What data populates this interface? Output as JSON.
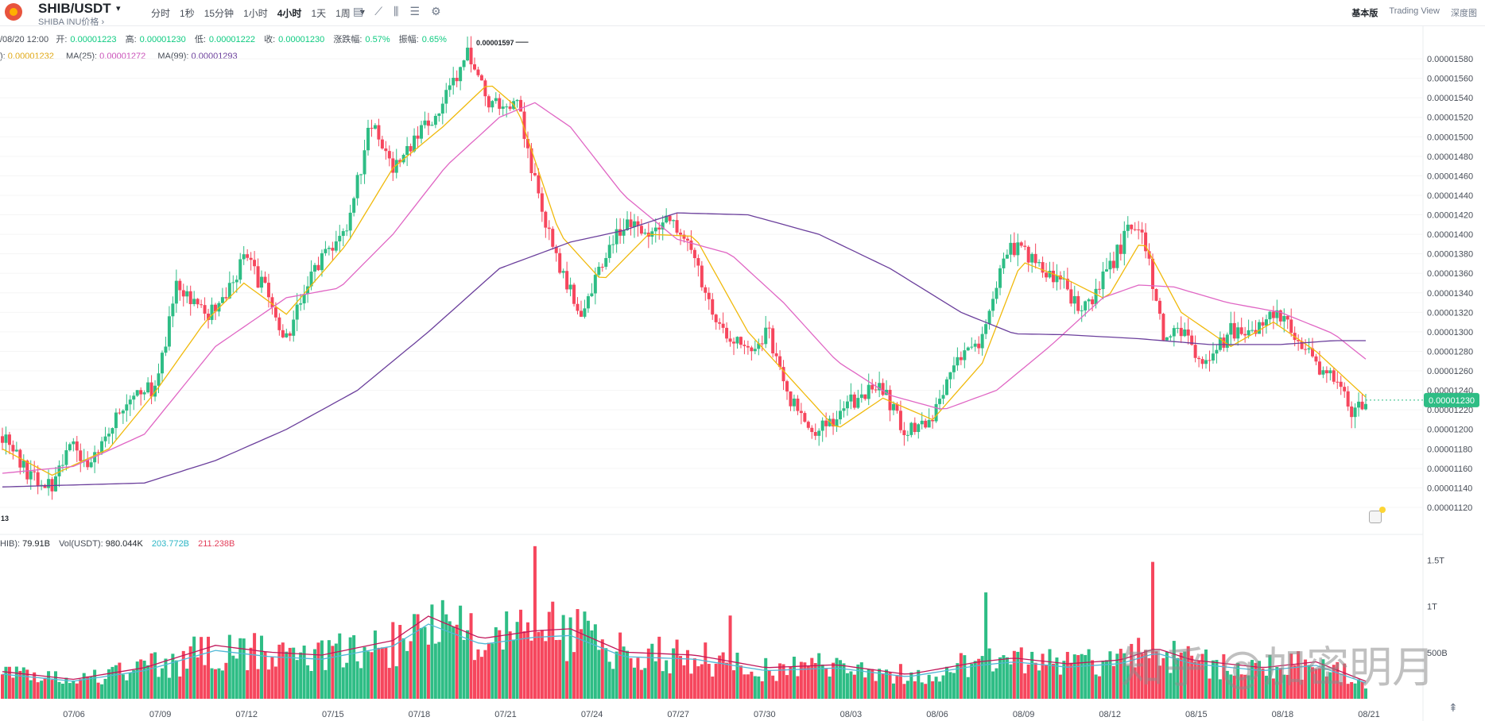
{
  "header": {
    "pair": "SHIB/USDT",
    "caret": "▾",
    "subtitle": "SHIBA INU价格 ›",
    "intervals": [
      "分时",
      "1秒",
      "15分钟",
      "1小时",
      "4小时",
      "1天",
      "1周",
      "▾"
    ],
    "active_interval": "4小时",
    "tools": [
      "▤",
      "⟋",
      "⫼",
      "☰",
      "⚙"
    ],
    "views": [
      "基本版",
      "Trading View",
      "深度图"
    ]
  },
  "info": {
    "date": "/08/20 12:00",
    "open_label": "开:",
    "open": "0.00001223",
    "high_label": "高:",
    "high": "0.00001230",
    "low_label": "低:",
    "low": "0.00001222",
    "close_label": "收:",
    "close": "0.00001230",
    "chg_label": "涨跌幅:",
    "chg": "0.57%",
    "amp_label": "振幅:",
    "amp": "0.65%",
    "ma7_label": "):",
    "ma7": "0.00001232",
    "ma25_label": "MA(25):",
    "ma25": "0.00001272",
    "ma99_label": "MA(99):",
    "ma99": "0.00001293",
    "vol_label": "HIB):",
    "vol": "79.91B",
    "volusdt_label": "Vol(USDT):",
    "volusdt": "980.044K",
    "volma1": "203.772B",
    "volma2": "211.238B"
  },
  "watermark": "知乎 @加密明月",
  "colors": {
    "up": "#2ebd85",
    "down": "#f6465d",
    "ma7": "#f0b90b",
    "ma25": "#e066c4",
    "ma99": "#6b3f9c",
    "vma1": "#4fb8d6",
    "vma2": "#c2185b",
    "last": "#2ebd85"
  },
  "chart_data": {
    "type": "candlestick",
    "interval": "4h",
    "price_axis": {
      "min": 1.11e-05,
      "max": 1.6e-05,
      "ticks": [
        "0.00001580",
        "0.00001560",
        "0.00001540",
        "0.00001520",
        "0.00001500",
        "0.00001480",
        "0.00001460",
        "0.00001440",
        "0.00001420",
        "0.00001400",
        "0.00001380",
        "0.00001360",
        "0.00001340",
        "0.00001320",
        "0.00001300",
        "0.00001280",
        "0.00001260",
        "0.00001240",
        "0.00001220",
        "0.00001200",
        "0.00001180",
        "0.00001160",
        "0.00001140",
        "0.00001120"
      ],
      "last_price": "0.00001230",
      "max_marker": "0.00001597",
      "min_marker": "13"
    },
    "volume_axis": {
      "ticks": [
        "1.5T",
        "1T",
        "500B"
      ],
      "max": 1.7
    },
    "date_labels": [
      "07/06",
      "07/09",
      "07/12",
      "07/15",
      "07/18",
      "07/21",
      "07/24",
      "07/27",
      "07/30",
      "08/03",
      "08/06",
      "08/09",
      "08/12",
      "08/15",
      "08/18",
      "08/21"
    ],
    "close_path": [
      [
        0,
        1.193
      ],
      [
        8,
        1.15
      ],
      [
        14,
        1.143
      ],
      [
        19,
        1.191
      ],
      [
        24,
        1.158
      ],
      [
        30,
        1.195
      ],
      [
        37,
        1.242
      ],
      [
        43,
        1.24
      ],
      [
        49,
        1.346
      ],
      [
        57,
        1.318
      ],
      [
        63,
        1.333
      ],
      [
        68,
        1.376
      ],
      [
        74,
        1.343
      ],
      [
        80,
        1.294
      ],
      [
        88,
        1.363
      ],
      [
        97,
        1.409
      ],
      [
        104,
        1.516
      ],
      [
        110,
        1.471
      ],
      [
        116,
        1.498
      ],
      [
        124,
        1.535
      ],
      [
        131,
        1.585
      ],
      [
        137,
        1.536
      ],
      [
        145,
        1.535
      ],
      [
        151,
        1.439
      ],
      [
        157,
        1.368
      ],
      [
        163,
        1.32
      ],
      [
        169,
        1.367
      ],
      [
        175,
        1.411
      ],
      [
        182,
        1.4
      ],
      [
        189,
        1.415
      ],
      [
        195,
        1.374
      ],
      [
        202,
        1.305
      ],
      [
        210,
        1.283
      ],
      [
        216,
        1.298
      ],
      [
        222,
        1.228
      ],
      [
        229,
        1.198
      ],
      [
        235,
        1.214
      ],
      [
        242,
        1.237
      ],
      [
        248,
        1.24
      ],
      [
        254,
        1.197
      ],
      [
        262,
        1.214
      ],
      [
        268,
        1.263
      ],
      [
        276,
        1.296
      ],
      [
        282,
        1.38
      ],
      [
        287,
        1.388
      ],
      [
        293,
        1.36
      ],
      [
        299,
        1.348
      ],
      [
        304,
        1.32
      ],
      [
        311,
        1.36
      ],
      [
        317,
        1.402
      ],
      [
        321,
        1.41
      ],
      [
        327,
        1.29
      ],
      [
        332,
        1.3
      ],
      [
        338,
        1.267
      ],
      [
        346,
        1.3
      ],
      [
        352,
        1.302
      ],
      [
        358,
        1.322
      ],
      [
        364,
        1.3
      ],
      [
        370,
        1.265
      ],
      [
        376,
        1.248
      ],
      [
        380,
        1.218
      ],
      [
        384,
        1.23
      ]
    ],
    "ma7_path": [
      [
        0,
        1.18
      ],
      [
        14,
        1.153
      ],
      [
        30,
        1.18
      ],
      [
        43,
        1.238
      ],
      [
        57,
        1.31
      ],
      [
        68,
        1.35
      ],
      [
        80,
        1.318
      ],
      [
        97,
        1.39
      ],
      [
        110,
        1.468
      ],
      [
        124,
        1.51
      ],
      [
        137,
        1.555
      ],
      [
        145,
        1.53
      ],
      [
        157,
        1.4
      ],
      [
        169,
        1.352
      ],
      [
        182,
        1.4
      ],
      [
        195,
        1.398
      ],
      [
        210,
        1.3
      ],
      [
        222,
        1.252
      ],
      [
        235,
        1.2
      ],
      [
        248,
        1.232
      ],
      [
        262,
        1.21
      ],
      [
        276,
        1.268
      ],
      [
        287,
        1.372
      ],
      [
        299,
        1.355
      ],
      [
        311,
        1.333
      ],
      [
        321,
        1.395
      ],
      [
        332,
        1.32
      ],
      [
        346,
        1.285
      ],
      [
        358,
        1.31
      ],
      [
        370,
        1.28
      ],
      [
        384,
        1.233
      ]
    ],
    "ma25_path": [
      [
        0,
        1.155
      ],
      [
        20,
        1.162
      ],
      [
        40,
        1.195
      ],
      [
        60,
        1.285
      ],
      [
        80,
        1.335
      ],
      [
        95,
        1.345
      ],
      [
        110,
        1.4
      ],
      [
        125,
        1.47
      ],
      [
        140,
        1.52
      ],
      [
        150,
        1.535
      ],
      [
        160,
        1.51
      ],
      [
        175,
        1.44
      ],
      [
        190,
        1.395
      ],
      [
        205,
        1.38
      ],
      [
        220,
        1.33
      ],
      [
        235,
        1.27
      ],
      [
        250,
        1.235
      ],
      [
        265,
        1.22
      ],
      [
        280,
        1.24
      ],
      [
        295,
        1.285
      ],
      [
        310,
        1.335
      ],
      [
        320,
        1.348
      ],
      [
        330,
        1.346
      ],
      [
        345,
        1.33
      ],
      [
        360,
        1.32
      ],
      [
        375,
        1.298
      ],
      [
        384,
        1.272
      ]
    ],
    "ma99_path": [
      [
        0,
        1.141
      ],
      [
        40,
        1.145
      ],
      [
        60,
        1.168
      ],
      [
        80,
        1.2
      ],
      [
        100,
        1.24
      ],
      [
        120,
        1.3
      ],
      [
        140,
        1.365
      ],
      [
        160,
        1.392
      ],
      [
        175,
        1.404
      ],
      [
        190,
        1.422
      ],
      [
        210,
        1.42
      ],
      [
        230,
        1.4
      ],
      [
        250,
        1.365
      ],
      [
        270,
        1.32
      ],
      [
        285,
        1.298
      ],
      [
        300,
        1.297
      ],
      [
        320,
        1.293
      ],
      [
        340,
        1.287
      ],
      [
        360,
        1.287
      ],
      [
        375,
        1.291
      ],
      [
        384,
        1.291
      ]
    ],
    "volume_profile": [
      [
        0,
        0.28
      ],
      [
        20,
        0.2
      ],
      [
        40,
        0.32
      ],
      [
        60,
        0.55
      ],
      [
        75,
        0.48
      ],
      [
        90,
        0.45
      ],
      [
        110,
        0.6
      ],
      [
        120,
        0.85
      ],
      [
        135,
        0.62
      ],
      [
        150,
        0.7
      ],
      [
        160,
        0.72
      ],
      [
        175,
        0.48
      ],
      [
        195,
        0.45
      ],
      [
        215,
        0.32
      ],
      [
        235,
        0.35
      ],
      [
        255,
        0.25
      ],
      [
        275,
        0.38
      ],
      [
        285,
        0.42
      ],
      [
        300,
        0.36
      ],
      [
        315,
        0.4
      ],
      [
        325,
        0.52
      ],
      [
        335,
        0.4
      ],
      [
        355,
        0.32
      ],
      [
        370,
        0.38
      ],
      [
        384,
        0.18
      ]
    ],
    "volume_spikes": [
      [
        150,
        1.65
      ],
      [
        155,
        1.05
      ],
      [
        277,
        1.15
      ],
      [
        324,
        1.48
      ],
      [
        205,
        0.9
      ]
    ],
    "volume_seed": 73
  }
}
